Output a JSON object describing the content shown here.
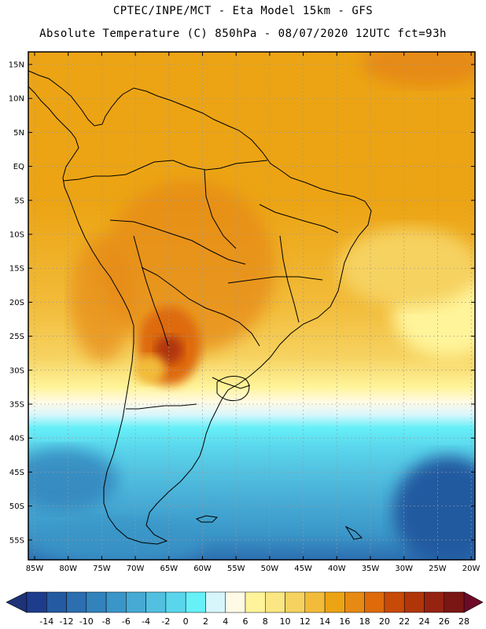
{
  "header": {
    "line1": "CPTEC/INPE/MCT  -   Eta Model 15km  -  GFS",
    "line2": "Absolute Temperature (C) 850hPa - 08/07/2020 12UTC fct=93h"
  },
  "map": {
    "region": "South America",
    "lat_labels": [
      "15N",
      "10N",
      "5N",
      "EQ",
      "5S",
      "10S",
      "15S",
      "20S",
      "25S",
      "30S",
      "35S",
      "40S",
      "45S",
      "50S",
      "55S"
    ],
    "lon_labels": [
      "85W",
      "80W",
      "75W",
      "70W",
      "65W",
      "60W",
      "55W",
      "50W",
      "45W",
      "40W",
      "35W",
      "30W",
      "25W",
      "20W"
    ]
  },
  "colorbar": {
    "labels": [
      "-14",
      "-12",
      "-10",
      "-8",
      "-6",
      "-4",
      "-2",
      "0",
      "2",
      "4",
      "6",
      "8",
      "10",
      "12",
      "14",
      "16",
      "18",
      "20",
      "22",
      "24",
      "26",
      "28"
    ],
    "colors": [
      "#1e3c8c",
      "#245aa0",
      "#2c6eb0",
      "#3282bc",
      "#3a96c8",
      "#46aad4",
      "#52c0e0",
      "#5ad6ec",
      "#66f0f8",
      "#d6f6fc",
      "#fffae6",
      "#fff49a",
      "#fae682",
      "#f6d260",
      "#f2bc3a",
      "#eca414",
      "#e68a14",
      "#de6a0a",
      "#c84a08",
      "#b0360a",
      "#962212",
      "#7a1614"
    ],
    "under_color": "#1e3278",
    "over_color": "#6e0a28"
  }
}
